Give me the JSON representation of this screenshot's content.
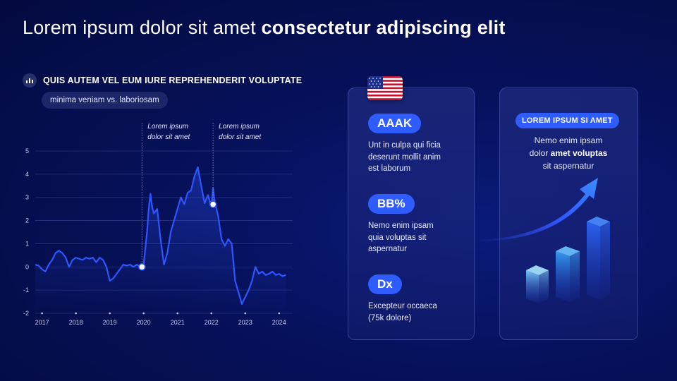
{
  "title": {
    "regular": "Lorem ipsum dolor sit amet",
    "bold": "consectetur adipiscing elit"
  },
  "chart_section": {
    "icon": "bar-chart-icon",
    "title": "QUIS AUTEM VEL EUM IURE REPREHENDERIT VOLUPTATE",
    "subtitle": "minima veniam vs. laboriosam"
  },
  "chart_data": {
    "type": "line",
    "title": "QUIS AUTEM VEL EUM IURE REPREHENDERIT VOLUPTATE",
    "subtitle": "minima veniam vs. laboriosam",
    "xlabel": "",
    "ylabel": "",
    "xlim": [
      2016.8,
      2024.4
    ],
    "ylim": [
      -2,
      5
    ],
    "yticks": [
      -2,
      -1,
      0,
      1,
      2,
      3,
      4,
      5
    ],
    "xticks": [
      "2017",
      "2018",
      "2019",
      "2020",
      "2021",
      "2022",
      "2023",
      "2024"
    ],
    "grid": true,
    "color": "#2f55ff",
    "series": [
      {
        "x": [
          2016.8,
          2016.9,
          2017.0,
          2017.1,
          2017.2,
          2017.3,
          2017.4,
          2017.5,
          2017.6,
          2017.7,
          2017.8,
          2017.9,
          2018.0,
          2018.1,
          2018.2,
          2018.3,
          2018.4,
          2018.5,
          2018.6,
          2018.7,
          2018.8,
          2018.9,
          2019.0,
          2019.1,
          2019.2,
          2019.3,
          2019.4,
          2019.5,
          2019.6,
          2019.7,
          2019.8,
          2019.9,
          2020.0,
          2020.05,
          2020.1,
          2020.15,
          2020.2,
          2020.25,
          2020.3,
          2020.4,
          2020.5,
          2020.6,
          2020.7,
          2020.8,
          2020.9,
          2021.0,
          2021.1,
          2021.2,
          2021.3,
          2021.4,
          2021.5,
          2021.6,
          2021.7,
          2021.8,
          2021.9,
          2022.0,
          2022.05,
          2022.1,
          2022.2,
          2022.3,
          2022.4,
          2022.5,
          2022.6,
          2022.7,
          2022.8,
          2022.9,
          2023.0,
          2023.1,
          2023.2,
          2023.3,
          2023.4,
          2023.5,
          2023.6,
          2023.7,
          2023.8,
          2023.9,
          2024.0,
          2024.1,
          2024.2
        ],
        "y": [
          0.1,
          0.05,
          -0.1,
          -0.2,
          0.1,
          0.3,
          0.6,
          0.7,
          0.6,
          0.4,
          0.0,
          0.3,
          0.4,
          0.35,
          0.3,
          0.4,
          0.35,
          0.4,
          0.2,
          0.4,
          0.3,
          0.0,
          -0.6,
          -0.5,
          -0.3,
          -0.1,
          0.1,
          0.05,
          0.1,
          0.0,
          0.1,
          0.0,
          0.05,
          0.8,
          1.5,
          2.5,
          3.15,
          2.6,
          2.3,
          2.5,
          1.2,
          0.1,
          0.6,
          1.5,
          2.0,
          2.5,
          3.0,
          2.7,
          3.2,
          3.3,
          3.9,
          4.3,
          3.5,
          2.75,
          3.1,
          2.6,
          3.4,
          2.8,
          2.2,
          1.2,
          0.9,
          1.2,
          1.0,
          -0.6,
          -1.1,
          -1.6,
          -1.3,
          -1.0,
          -0.6,
          0.0,
          -0.3,
          -0.2,
          -0.35,
          -0.3,
          -0.2,
          -0.35,
          -0.3,
          -0.4,
          -0.35
        ]
      }
    ],
    "annotations": [
      {
        "x": 2019.95,
        "y": 0.0,
        "text": [
          "Lorem ipsum",
          "dolor sit amet"
        ]
      },
      {
        "x": 2022.05,
        "y": 2.7,
        "text": [
          "Lorem ipsum",
          "dolor sit amet"
        ]
      }
    ]
  },
  "flag": {
    "icon": "us-flag-icon"
  },
  "kpis": [
    {
      "badge": "AAAK",
      "text": [
        "Unt in culpa qui ficia",
        "deserunt mollit anim",
        "est laborum"
      ]
    },
    {
      "badge": "BB%",
      "text": [
        "Nemo enim ipsam",
        "quia voluptas sit",
        "aspernatur"
      ]
    },
    {
      "badge": "Dx",
      "text": [
        "Excepteur occaeca",
        "(75k dolore)"
      ]
    }
  ],
  "highlight": {
    "badge": "LOREM IPSUM SI AMET",
    "line1": "Nemo enim ipsam",
    "line2_regular": "dolor ",
    "line2_bold": "amet voluptas",
    "line3": "sit aspernatur",
    "deco_icon": "growth-arrow-bars-icon"
  }
}
